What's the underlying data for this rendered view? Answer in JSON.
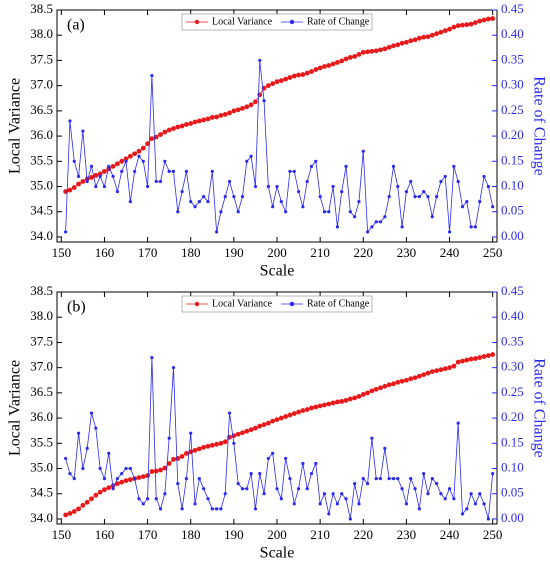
{
  "chart_data": [
    {
      "type": "line",
      "panel_label": "(a)",
      "xlabel": "Scale",
      "ylabel": "Local Variance",
      "y2label": "Rate of Change",
      "legend": "upper center",
      "x": [
        151,
        152,
        153,
        154,
        155,
        156,
        157,
        158,
        159,
        160,
        161,
        162,
        163,
        164,
        165,
        166,
        167,
        168,
        169,
        170,
        171,
        172,
        173,
        174,
        175,
        176,
        177,
        178,
        179,
        180,
        181,
        182,
        183,
        184,
        185,
        186,
        187,
        188,
        189,
        190,
        191,
        192,
        193,
        194,
        195,
        196,
        197,
        198,
        199,
        200,
        201,
        202,
        203,
        204,
        205,
        206,
        207,
        208,
        209,
        210,
        211,
        212,
        213,
        214,
        215,
        216,
        217,
        218,
        219,
        220,
        221,
        222,
        223,
        224,
        225,
        226,
        227,
        228,
        229,
        230,
        231,
        232,
        233,
        234,
        235,
        236,
        237,
        238,
        239,
        240,
        241,
        242,
        243,
        244,
        245,
        246,
        247,
        248,
        249,
        250
      ],
      "xlim": [
        149,
        251
      ],
      "xticks": [
        150,
        160,
        170,
        180,
        190,
        200,
        210,
        220,
        230,
        240,
        250
      ],
      "ylim": [
        33.9,
        38.5
      ],
      "yticks": [
        {
          "value": 34,
          "label": "34.0"
        },
        34.5,
        {
          "value": 35,
          "label": "35.0"
        },
        35.5,
        {
          "value": 36,
          "label": "36.0"
        },
        36.5,
        {
          "value": 37,
          "label": "37.0"
        },
        37.5,
        {
          "value": 38,
          "label": "38.0"
        },
        38.5
      ],
      "y2lim": [
        -0.01,
        0.45
      ],
      "y2ticks": [
        {
          "value": 0,
          "label": "0.00"
        },
        0.05,
        {
          "value": 0.1,
          "label": "0.10"
        },
        0.15,
        {
          "value": 0.2,
          "label": "0.20"
        },
        0.25,
        {
          "value": 0.3,
          "label": "0.30"
        },
        0.35,
        {
          "value": 0.4,
          "label": "0.40"
        },
        0.45
      ],
      "series": [
        {
          "name": "Local Variance",
          "color": "#e8191a",
          "axis": "y",
          "values": [
            34.9,
            34.93,
            34.98,
            35.05,
            35.1,
            35.15,
            35.18,
            35.22,
            35.25,
            35.3,
            35.35,
            35.4,
            35.45,
            35.5,
            35.55,
            35.6,
            35.65,
            35.7,
            35.76,
            35.85,
            35.95,
            35.98,
            36.03,
            36.08,
            36.12,
            36.15,
            36.18,
            36.2,
            36.23,
            36.25,
            36.28,
            36.3,
            36.32,
            36.34,
            36.37,
            36.38,
            36.41,
            36.43,
            36.46,
            36.5,
            36.52,
            36.55,
            36.58,
            36.62,
            36.68,
            36.82,
            36.95,
            37.0,
            37.04,
            37.08,
            37.1,
            37.13,
            37.16,
            37.19,
            37.21,
            37.22,
            37.25,
            37.28,
            37.32,
            37.35,
            37.38,
            37.4,
            37.43,
            37.46,
            37.49,
            37.53,
            37.56,
            37.58,
            37.62,
            37.66,
            37.67,
            37.68,
            37.69,
            37.71,
            37.73,
            37.76,
            37.79,
            37.81,
            37.84,
            37.86,
            37.89,
            37.91,
            37.94,
            37.96,
            37.97,
            38.0,
            38.03,
            38.06,
            38.09,
            38.12,
            38.16,
            38.19,
            38.2,
            38.21,
            38.22,
            38.25,
            38.28,
            38.3,
            38.32,
            38.33
          ]
        },
        {
          "name": "Rate of Change",
          "color": "#2b2bf0",
          "axis": "y2",
          "values": [
            0.01,
            0.23,
            0.15,
            0.12,
            0.21,
            0.11,
            0.14,
            0.1,
            0.12,
            0.1,
            0.14,
            0.12,
            0.09,
            0.13,
            0.15,
            0.07,
            0.13,
            0.16,
            0.15,
            0.1,
            0.32,
            0.11,
            0.11,
            0.15,
            0.13,
            0.13,
            0.05,
            0.09,
            0.13,
            0.07,
            0.06,
            0.07,
            0.08,
            0.07,
            0.13,
            0.01,
            0.05,
            0.08,
            0.11,
            0.08,
            0.05,
            0.08,
            0.15,
            0.16,
            0.1,
            0.35,
            0.27,
            0.1,
            0.06,
            0.1,
            0.07,
            0.05,
            0.13,
            0.13,
            0.09,
            0.06,
            0.11,
            0.14,
            0.15,
            0.08,
            0.05,
            0.05,
            0.1,
            0.02,
            0.09,
            0.14,
            0.05,
            0.04,
            0.07,
            0.17,
            0.01,
            0.02,
            0.03,
            0.03,
            0.04,
            0.08,
            0.14,
            0.1,
            0.02,
            0.09,
            0.11,
            0.08,
            0.08,
            0.09,
            0.08,
            0.04,
            0.08,
            0.11,
            0.12,
            0.01,
            0.14,
            0.11,
            0.06,
            0.07,
            0.02,
            0.02,
            0.07,
            0.12,
            0.1,
            0.06
          ]
        }
      ]
    },
    {
      "type": "line",
      "panel_label": "(b)",
      "xlabel": "Scale",
      "ylabel": "Local Variance",
      "y2label": "Rate of Change",
      "legend": "upper center",
      "x": [
        151,
        152,
        153,
        154,
        155,
        156,
        157,
        158,
        159,
        160,
        161,
        162,
        163,
        164,
        165,
        166,
        167,
        168,
        169,
        170,
        171,
        172,
        173,
        174,
        175,
        176,
        177,
        178,
        179,
        180,
        181,
        182,
        183,
        184,
        185,
        186,
        187,
        188,
        189,
        190,
        191,
        192,
        193,
        194,
        195,
        196,
        197,
        198,
        199,
        200,
        201,
        202,
        203,
        204,
        205,
        206,
        207,
        208,
        209,
        210,
        211,
        212,
        213,
        214,
        215,
        216,
        217,
        218,
        219,
        220,
        221,
        222,
        223,
        224,
        225,
        226,
        227,
        228,
        229,
        230,
        231,
        232,
        233,
        234,
        235,
        236,
        237,
        238,
        239,
        240,
        241,
        242,
        243,
        244,
        245,
        246,
        247,
        248,
        249,
        250
      ],
      "xlim": [
        149,
        251
      ],
      "xticks": [
        150,
        160,
        170,
        180,
        190,
        200,
        210,
        220,
        230,
        240,
        250
      ],
      "ylim": [
        33.9,
        38.5
      ],
      "yticks": [
        {
          "value": 34,
          "label": "34.0"
        },
        34.5,
        {
          "value": 35,
          "label": "35.0"
        },
        35.5,
        {
          "value": 36,
          "label": "36.0"
        },
        36.5,
        {
          "value": 37,
          "label": "37.0"
        },
        37.5,
        {
          "value": 38,
          "label": "38.0"
        },
        38.5
      ],
      "y2lim": [
        -0.01,
        0.45
      ],
      "y2ticks": [
        {
          "value": 0,
          "label": "0.00"
        },
        0.05,
        {
          "value": 0.1,
          "label": "0.10"
        },
        0.15,
        {
          "value": 0.2,
          "label": "0.20"
        },
        0.25,
        {
          "value": 0.3,
          "label": "0.30"
        },
        0.35,
        {
          "value": 0.4,
          "label": "0.40"
        },
        0.45
      ],
      "series": [
        {
          "name": "Local Variance",
          "color": "#e8191a",
          "axis": "y",
          "values": [
            34.08,
            34.11,
            34.15,
            34.2,
            34.27,
            34.33,
            34.4,
            34.47,
            34.53,
            34.58,
            34.62,
            34.66,
            34.7,
            34.73,
            34.76,
            34.78,
            34.8,
            34.82,
            34.84,
            34.86,
            34.94,
            34.95,
            34.97,
            35.01,
            35.1,
            35.18,
            35.2,
            35.24,
            35.3,
            35.33,
            35.36,
            35.39,
            35.42,
            35.44,
            35.46,
            35.48,
            35.5,
            35.53,
            35.62,
            35.65,
            35.68,
            35.71,
            35.74,
            35.77,
            35.8,
            35.84,
            35.87,
            35.9,
            35.94,
            35.97,
            36.0,
            36.03,
            36.06,
            36.09,
            36.12,
            36.15,
            36.17,
            36.2,
            36.22,
            36.24,
            36.26,
            36.28,
            36.3,
            36.32,
            36.33,
            36.35,
            36.38,
            36.4,
            36.43,
            36.47,
            36.5,
            36.54,
            36.57,
            36.6,
            36.63,
            36.66,
            36.68,
            36.71,
            36.73,
            36.75,
            36.78,
            36.8,
            36.83,
            36.86,
            36.89,
            36.92,
            36.94,
            36.96,
            36.98,
            37.0,
            37.03,
            37.11,
            37.13,
            37.15,
            37.17,
            37.18,
            37.2,
            37.22,
            37.24,
            37.26
          ]
        },
        {
          "name": "Rate of Change",
          "color": "#2b2bf0",
          "axis": "y2",
          "values": [
            0.12,
            0.09,
            0.08,
            0.17,
            0.1,
            0.14,
            0.21,
            0.18,
            0.1,
            0.08,
            0.13,
            0.06,
            0.08,
            0.09,
            0.1,
            0.1,
            0.08,
            0.04,
            0.03,
            0.04,
            0.32,
            0.04,
            0.02,
            0.05,
            0.16,
            0.3,
            0.07,
            0.02,
            0.08,
            0.17,
            0.03,
            0.08,
            0.06,
            0.04,
            0.02,
            0.02,
            0.02,
            0.05,
            0.21,
            0.15,
            0.07,
            0.06,
            0.06,
            0.09,
            0.02,
            0.09,
            0.05,
            0.12,
            0.13,
            0.06,
            0.04,
            0.12,
            0.08,
            0.03,
            0.06,
            0.11,
            0.06,
            0.09,
            0.11,
            0.03,
            0.05,
            0.01,
            0.05,
            0.03,
            0.05,
            0.04,
            0.0,
            0.07,
            0.03,
            0.08,
            0.07,
            0.16,
            0.08,
            0.08,
            0.14,
            0.08,
            0.08,
            0.08,
            0.06,
            0.03,
            0.08,
            0.06,
            0.02,
            0.09,
            0.05,
            0.08,
            0.07,
            0.05,
            0.04,
            0.06,
            0.04,
            0.19,
            0.01,
            0.02,
            0.05,
            0.03,
            0.05,
            0.03,
            0.0,
            0.09
          ]
        }
      ]
    }
  ]
}
